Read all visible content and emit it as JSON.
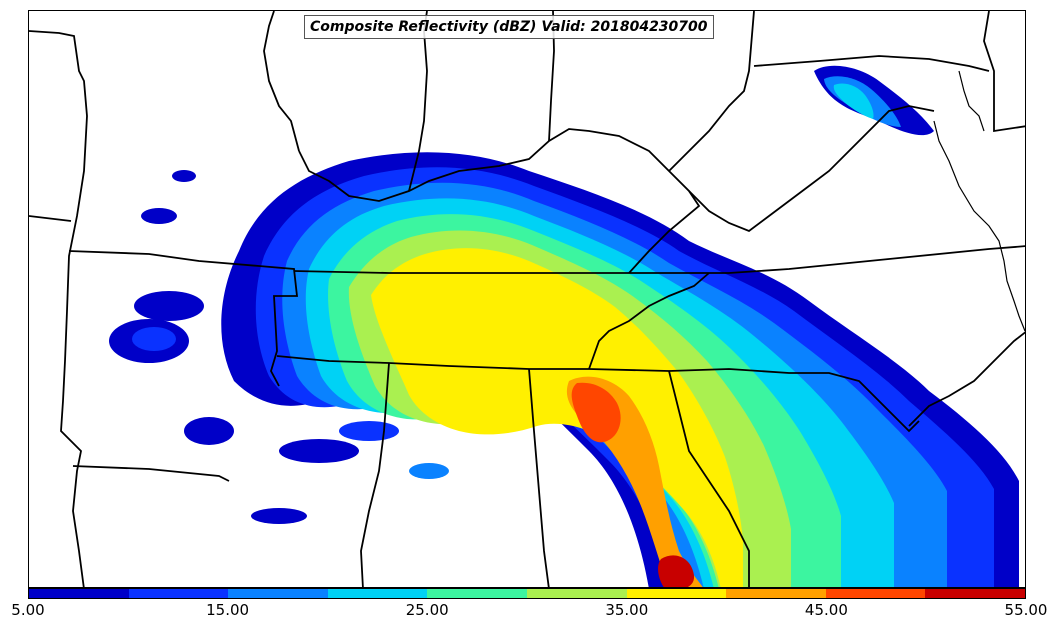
{
  "title": "Composite Reflectivity (dBZ) Valid: 201804230700",
  "colorbar": {
    "min": 5,
    "max": 55,
    "step": 5,
    "colors": [
      "#0000c8",
      "#0a32ff",
      "#0a82ff",
      "#00d2f5",
      "#3cf5a0",
      "#aaf050",
      "#fff000",
      "#ffa000",
      "#ff4600",
      "#c80000"
    ],
    "tick_labels": [
      "5.00",
      "15.00",
      "25.00",
      "35.00",
      "45.00",
      "55.00"
    ]
  },
  "reflectivity_fill_colors": {
    "level_10": "#0000c8",
    "level_15": "#0a32ff",
    "level_20": "#0a82ff",
    "level_25": "#00d2f5",
    "level_30": "#3cf5a0",
    "level_35": "#aaf050",
    "level_40": "#fff000",
    "level_45": "#ffa000",
    "level_50": "#ff4600",
    "level_55": "#c80000"
  }
}
